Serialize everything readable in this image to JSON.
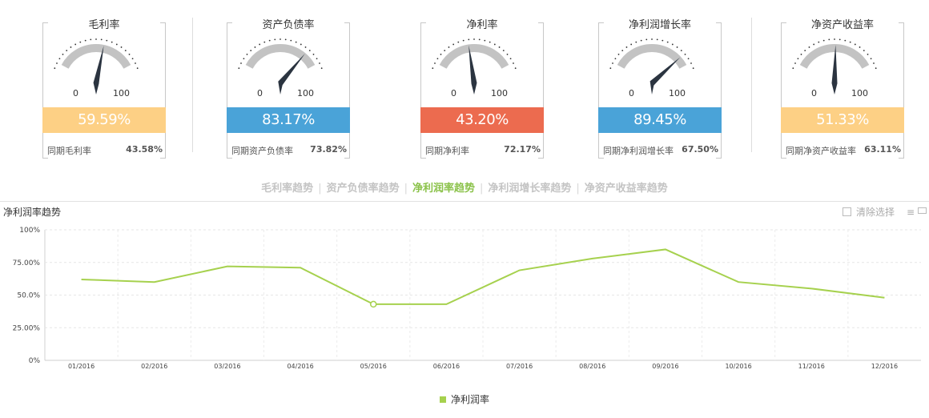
{
  "gauges": [
    {
      "title": "毛利率",
      "min": "0",
      "max": "100",
      "value_pct": 59.59,
      "value_label": "59.59%",
      "color": "#fdd085",
      "prior_label": "同期毛利率",
      "prior_value": "43.58%"
    },
    {
      "title": "资产负债率",
      "min": "0",
      "max": "100",
      "value_pct": 83.17,
      "value_label": "83.17%",
      "color": "#4aa3d8",
      "prior_label": "同期资产负债率",
      "prior_value": "73.82%"
    },
    {
      "title": "净利率",
      "min": "0",
      "max": "100",
      "value_pct": 43.2,
      "value_label": "43.20%",
      "color": "#ec6b4f",
      "prior_label": "同期净利率",
      "prior_value": "72.17%"
    },
    {
      "title": "净利润增长率",
      "min": "0",
      "max": "100",
      "value_pct": 89.45,
      "value_label": "89.45%",
      "color": "#4aa3d8",
      "prior_label": "同期净利润增长率",
      "prior_value": "67.50%"
    },
    {
      "title": "净资产收益率",
      "min": "0",
      "max": "100",
      "value_pct": 51.33,
      "value_label": "51.33%",
      "color": "#fdd085",
      "prior_label": "同期净资产收益率",
      "prior_value": "63.11%"
    }
  ],
  "tabs": {
    "items": [
      "毛利率趋势",
      "资产负债率趋势",
      "净利润率趋势",
      "净利润增长率趋势",
      "净资产收益率趋势"
    ],
    "active": 2
  },
  "chart_panel": {
    "title": "净利润率趋势",
    "clear_label": "清除选择",
    "menu_icon": "menu-icon",
    "export_icon": "mail-icon"
  },
  "chart_data": {
    "type": "line",
    "categories": [
      "01/2016",
      "02/2016",
      "03/2016",
      "04/2016",
      "05/2016",
      "06/2016",
      "07/2016",
      "08/2016",
      "09/2016",
      "10/2016",
      "11/2016",
      "12/2016"
    ],
    "series": [
      {
        "name": "净利润率",
        "values": [
          62,
          60,
          72,
          71,
          43,
          43,
          69,
          78,
          85,
          60,
          55,
          48
        ],
        "color": "#a6d14e"
      }
    ],
    "highlight_index": 4,
    "yticks": [
      {
        "v": 0,
        "label": "0%"
      },
      {
        "v": 25,
        "label": "25.00%"
      },
      {
        "v": 50,
        "label": "50.0%"
      },
      {
        "v": 75,
        "label": "75.00%"
      },
      {
        "v": 100,
        "label": "100%"
      }
    ],
    "ylim": [
      0,
      100
    ],
    "grid": true,
    "legend": "bottom-center"
  }
}
